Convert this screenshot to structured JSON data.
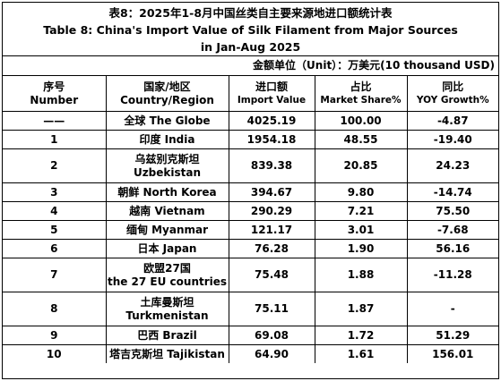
{
  "title_cn": "表8：2025年1-8月中国丝类自主要来源地进口额统计表",
  "title_en_line1": "Table 8: China's Import Value of Silk Filament from Major Sources",
  "title_en_line2": "in Jan-Aug 2025",
  "unit": "金额单位（Unit）：万美元(10 thousand USD)",
  "headers": {
    "no_cn": "序号",
    "no_en": "Number",
    "region_cn": "国家/地区",
    "region_en": "Country/Region",
    "value_cn": "进口额",
    "value_en": "Import Value",
    "share_cn": "占比",
    "share_en": "Market Share%",
    "yoy_cn": "同比",
    "yoy_en": "YOY Growth%"
  },
  "rows": [
    {
      "no": "——",
      "region": "全球  The Globe",
      "value": "4025.19",
      "share": "100.00",
      "yoy": "-4.87"
    },
    {
      "no": "1",
      "region": "印度 India",
      "value": "1954.18",
      "share": "48.55",
      "yoy": "-19.40"
    },
    {
      "no": "2",
      "region_cn": "乌兹别克斯坦",
      "region_en": "Uzbekistan",
      "value": "839.38",
      "share": "20.85",
      "yoy": "24.23"
    },
    {
      "no": "3",
      "region": "朝鲜  North Korea",
      "value": "394.67",
      "share": "9.80",
      "yoy": "-14.74"
    },
    {
      "no": "4",
      "region": "越南 Vietnam",
      "value": "290.29",
      "share": "7.21",
      "yoy": "75.50"
    },
    {
      "no": "5",
      "region": "缅甸 Myanmar",
      "value": "121.17",
      "share": "3.01",
      "yoy": "-7.68"
    },
    {
      "no": "6",
      "region": "日本 Japan",
      "value": "76.28",
      "share": "1.90",
      "yoy": "56.16"
    },
    {
      "no": "7",
      "region_cn": "欧盟27国",
      "region_en": "the 27 EU countries",
      "value": "75.48",
      "share": "1.88",
      "yoy": "-11.28"
    },
    {
      "no": "8",
      "region_cn": "土库曼斯坦",
      "region_en": "Turkmenistan",
      "value": "75.11",
      "share": "1.87",
      "yoy": "-"
    },
    {
      "no": "9",
      "region": "巴西 Brazil",
      "value": "69.08",
      "share": "1.72",
      "yoy": "51.29"
    },
    {
      "no": "10",
      "region": "塔吉克斯坦 Tajikistan",
      "value": "64.90",
      "share": "1.61",
      "yoy": "156.01"
    }
  ]
}
